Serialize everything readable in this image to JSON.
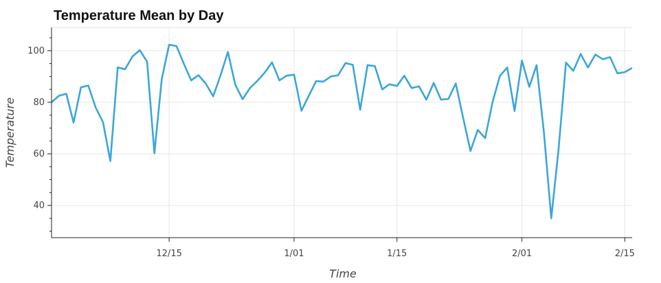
{
  "chart_data": {
    "type": "line",
    "title": "Temperature Mean by Day",
    "xlabel": "Time",
    "ylabel": "Temperature",
    "x_tick_labels": [
      "12/15",
      "1/01",
      "1/15",
      "2/01",
      "2/15"
    ],
    "y_ticks": [
      40,
      60,
      80,
      100
    ],
    "ylim": [
      27.5,
      109
    ],
    "grid": true,
    "series": [
      {
        "color": "#3ba6d8",
        "points": [
          [
            "11/29",
            80
          ],
          [
            "11/30",
            82.5
          ],
          [
            "12/01",
            83.3
          ],
          [
            "12/02",
            72.1
          ],
          [
            "12/03",
            85.8
          ],
          [
            "12/04",
            86.5
          ],
          [
            "12/05",
            78
          ],
          [
            "12/06",
            72.3
          ],
          [
            "12/07",
            57.2
          ],
          [
            "12/08",
            93.5
          ],
          [
            "12/09",
            92.8
          ],
          [
            "12/10",
            97.7
          ],
          [
            "12/11",
            100.2
          ],
          [
            "12/12",
            95.7
          ],
          [
            "12/13",
            60.2
          ],
          [
            "12/14",
            89
          ],
          [
            "12/15",
            102.3
          ],
          [
            "12/16",
            101.8
          ],
          [
            "12/17",
            95
          ],
          [
            "12/18",
            88.5
          ],
          [
            "12/19",
            90.5
          ],
          [
            "12/20",
            87.2
          ],
          [
            "12/21",
            82.3
          ],
          [
            "12/22",
            90.5
          ],
          [
            "12/23",
            99.5
          ],
          [
            "12/24",
            86.8
          ],
          [
            "12/25",
            81.2
          ],
          [
            "12/26",
            85.5
          ],
          [
            "12/27",
            88.3
          ],
          [
            "12/28",
            91.5
          ],
          [
            "12/29",
            95.5
          ],
          [
            "12/30",
            88.5
          ],
          [
            "12/31",
            90.3
          ],
          [
            "1/01",
            90.7
          ],
          [
            "1/02",
            76.7
          ],
          [
            "1/03",
            82.5
          ],
          [
            "1/04",
            88.2
          ],
          [
            "1/05",
            88
          ],
          [
            "1/06",
            90
          ],
          [
            "1/07",
            90.5
          ],
          [
            "1/08",
            95.2
          ],
          [
            "1/09",
            94.5
          ],
          [
            "1/10",
            77.1
          ],
          [
            "1/11",
            94.4
          ],
          [
            "1/12",
            94
          ],
          [
            "1/13",
            85
          ],
          [
            "1/14",
            87
          ],
          [
            "1/15",
            86.3
          ],
          [
            "1/16",
            90.3
          ],
          [
            "1/17",
            85.5
          ],
          [
            "1/18",
            86.2
          ],
          [
            "1/19",
            81
          ],
          [
            "1/20",
            87.5
          ],
          [
            "1/21",
            81
          ],
          [
            "1/22",
            81.3
          ],
          [
            "1/23",
            87.3
          ],
          [
            "1/24",
            74
          ],
          [
            "1/25",
            61.1
          ],
          [
            "1/26",
            69.3
          ],
          [
            "1/27",
            66.1
          ],
          [
            "1/28",
            80
          ],
          [
            "1/29",
            90.2
          ],
          [
            "1/30",
            93.5
          ],
          [
            "1/31",
            76.6
          ],
          [
            "2/01",
            96.2
          ],
          [
            "2/02",
            86
          ],
          [
            "2/03",
            94.4
          ],
          [
            "2/04",
            68.3
          ],
          [
            "2/05",
            35
          ],
          [
            "2/06",
            62
          ],
          [
            "2/07",
            95.4
          ],
          [
            "2/08",
            92.2
          ],
          [
            "2/09",
            98.7
          ],
          [
            "2/10",
            93.5
          ],
          [
            "2/11",
            98.5
          ],
          [
            "2/12",
            96.7
          ],
          [
            "2/13",
            97.5
          ],
          [
            "2/14",
            91.2
          ],
          [
            "2/15",
            91.7
          ],
          [
            "2/16",
            93.3
          ]
        ]
      }
    ]
  }
}
